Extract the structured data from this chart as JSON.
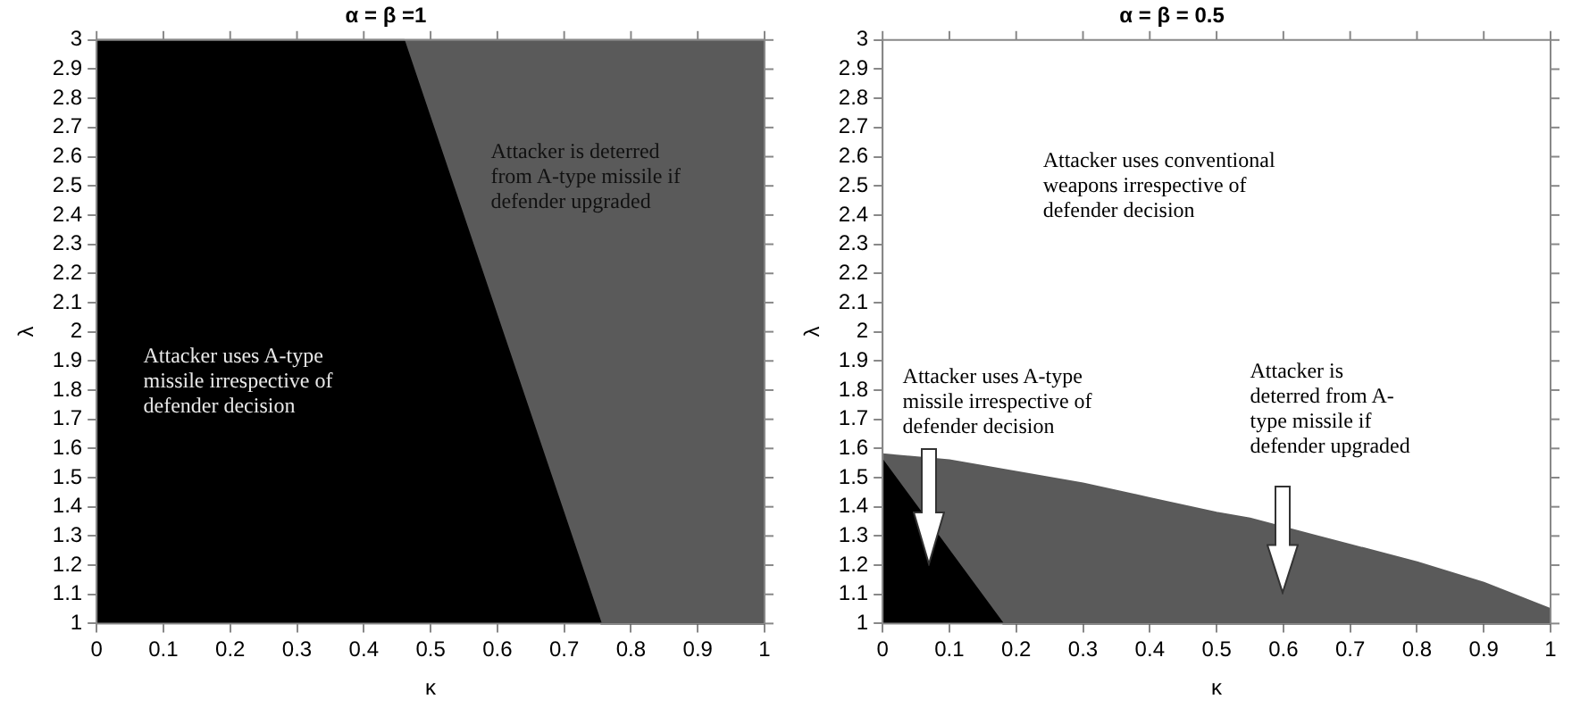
{
  "chart_data": [
    {
      "type": "area",
      "title": "α = β =1",
      "xlabel": "κ",
      "ylabel": "λ",
      "xlim": [
        0,
        1
      ],
      "ylim": [
        1,
        3
      ],
      "xticks": [
        0,
        0.1,
        0.2,
        0.3,
        0.4,
        0.5,
        0.6,
        0.7,
        0.8,
        0.9,
        1
      ],
      "yticks": [
        1,
        1.1,
        1.2,
        1.3,
        1.4,
        1.5,
        1.6,
        1.7,
        1.8,
        1.9,
        2,
        2.1,
        2.2,
        2.3,
        2.4,
        2.5,
        2.6,
        2.7,
        2.8,
        2.9,
        3
      ],
      "grid": false,
      "series": [
        {
          "color": "#000000",
          "x": [
            0,
            0.46,
            0.755,
            1
          ],
          "values": [
            3,
            3,
            1,
            1
          ]
        },
        {
          "color": "#5a5a5a",
          "x": [
            0.46,
            1
          ],
          "values": [
            3,
            3
          ]
        }
      ],
      "annotations": [
        "Attacker uses A-type\nmissile irrespective of\ndefender decision",
        "Attacker is deterred\nfrom A-type missile if\ndefender upgraded"
      ]
    },
    {
      "type": "area",
      "title": "α = β = 0.5",
      "xlabel": "κ",
      "ylabel": "λ",
      "xlim": [
        0,
        1
      ],
      "ylim": [
        1,
        3
      ],
      "xticks": [
        0,
        0.1,
        0.2,
        0.3,
        0.4,
        0.5,
        0.6,
        0.7,
        0.8,
        0.9,
        1
      ],
      "yticks": [
        1,
        1.1,
        1.2,
        1.3,
        1.4,
        1.5,
        1.6,
        1.7,
        1.8,
        1.9,
        2,
        2.1,
        2.2,
        2.3,
        2.4,
        2.5,
        2.6,
        2.7,
        2.8,
        2.9,
        3
      ],
      "grid": false,
      "series": [
        {
          "color": "#000000",
          "x": [
            0,
            0.18,
            1
          ],
          "values": [
            1.56,
            1,
            1
          ]
        },
        {
          "color": "#5a5a5a",
          "x": [
            0,
            0.1,
            0.2,
            0.3,
            0.4,
            0.5,
            0.55,
            0.65,
            0.7,
            0.8,
            0.9,
            1
          ],
          "values": [
            1.58,
            1.56,
            1.52,
            1.48,
            1.43,
            1.38,
            1.36,
            1.3,
            1.27,
            1.21,
            1.14,
            1.05
          ]
        }
      ],
      "annotations": [
        "Attacker uses conventional\nweapons irrespective of\ndefender decision",
        "Attacker uses A-type\nmissile irrespective of\ndefender decision",
        "Attacker is\ndeterred from A-\ntype missile if\ndefender upgraded"
      ]
    }
  ]
}
